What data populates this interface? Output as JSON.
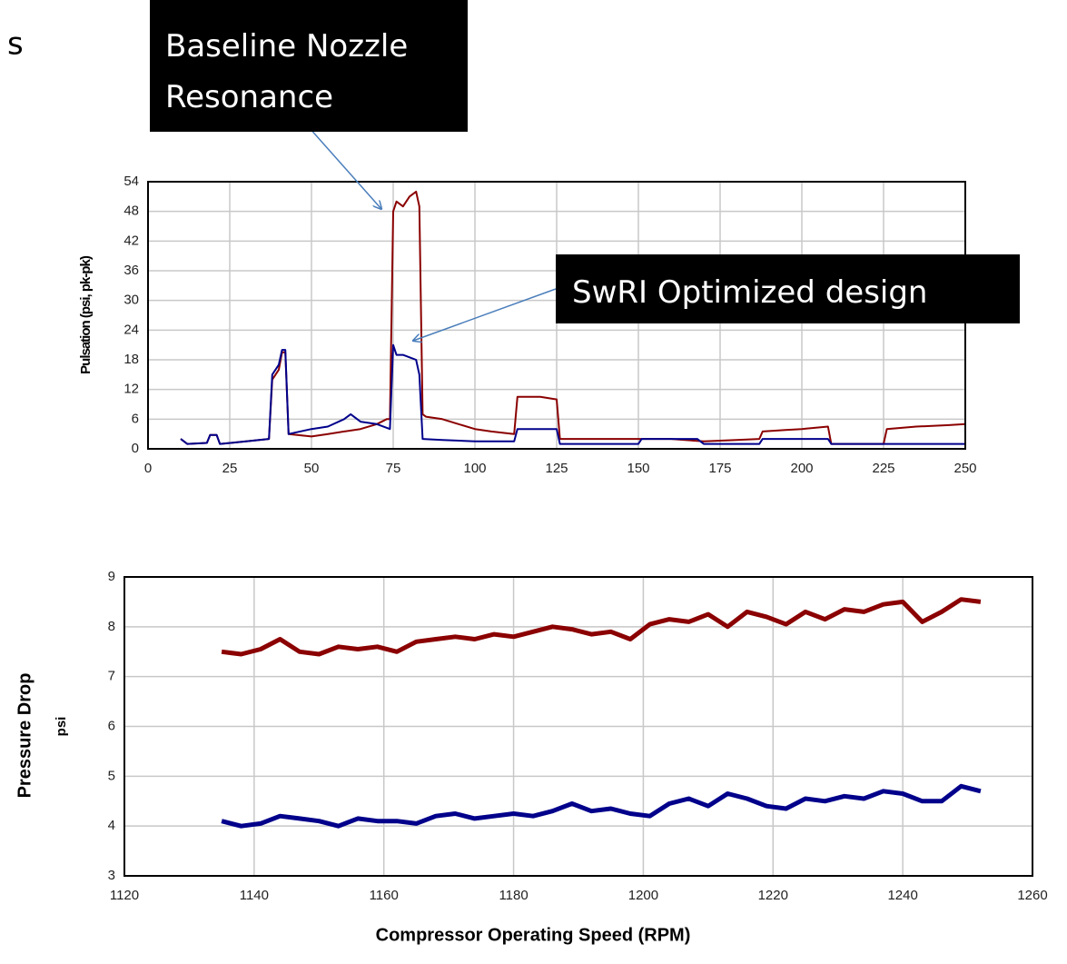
{
  "slide_title_fragment": "s",
  "chart_data": [
    {
      "type": "line",
      "y_label": "Pulsation (psi, pk-pk)",
      "annotations": [
        [
          "Baseline Nozzle",
          "Resonance"
        ],
        [
          "SwRI Optimized design"
        ]
      ],
      "xlim": [
        0,
        250
      ],
      "xticks": [
        0,
        25,
        50,
        75,
        100,
        125,
        150,
        175,
        200,
        225,
        250
      ],
      "ylim": [
        0,
        54
      ],
      "yticks": [
        0,
        6,
        12,
        18,
        24,
        30,
        36,
        42,
        48,
        54
      ],
      "grid": true,
      "line_width": 2,
      "series": [
        {
          "color": "#8b0000",
          "x": [
            10,
            12,
            18,
            19,
            21,
            22,
            30,
            37,
            38,
            40,
            41,
            42,
            43,
            50,
            55,
            60,
            65,
            70,
            73,
            74,
            75,
            76,
            78,
            80,
            82,
            83,
            84,
            85,
            90,
            95,
            100,
            105,
            112,
            113,
            120,
            125,
            126,
            140,
            150,
            160,
            170,
            180,
            187,
            188,
            195,
            200,
            208,
            209,
            215,
            225,
            226,
            235,
            245,
            250
          ],
          "values": [
            2,
            1,
            1.2,
            2.8,
            2.8,
            1,
            1.5,
            2,
            14,
            16,
            19.5,
            19.5,
            3,
            2.5,
            3,
            3.5,
            4,
            5,
            6,
            6,
            48,
            50,
            49,
            51,
            52,
            49,
            7,
            6.5,
            6,
            5,
            4,
            3.5,
            3,
            10.5,
            10.5,
            10,
            2,
            2,
            2,
            2,
            1.5,
            1.8,
            2,
            3.5,
            3.8,
            4,
            4.5,
            1,
            1,
            1,
            4,
            4.5,
            4.8,
            5
          ]
        },
        {
          "color": "#00008b",
          "x": [
            10,
            12,
            18,
            19,
            21,
            22,
            30,
            37,
            38,
            40,
            41,
            42,
            43,
            50,
            55,
            60,
            62,
            65,
            70,
            74,
            75,
            76,
            78,
            80,
            82,
            83,
            84,
            90,
            100,
            112,
            113,
            120,
            125,
            126,
            140,
            150,
            151,
            160,
            168,
            170,
            180,
            187,
            188,
            200,
            208,
            209,
            220,
            230,
            240,
            250
          ],
          "values": [
            2,
            1,
            1.2,
            2.8,
            2.8,
            1,
            1.5,
            2,
            15,
            17,
            20,
            20,
            3,
            4,
            4.5,
            6,
            7,
            5.5,
            5,
            4,
            21,
            19,
            19,
            18.5,
            18,
            15,
            2,
            1.8,
            1.5,
            1.5,
            4,
            4,
            4,
            1,
            1,
            1,
            2,
            2,
            2,
            1,
            1,
            1,
            2,
            2,
            2,
            1,
            1,
            1,
            1,
            1
          ]
        }
      ]
    },
    {
      "type": "line",
      "y_label": [
        "Pressure Drop",
        "psi"
      ],
      "x_label": "Compressor Operating Speed (RPM)",
      "xlim": [
        1120,
        1260
      ],
      "xticks": [
        1120,
        1140,
        1160,
        1180,
        1200,
        1220,
        1240,
        1260
      ],
      "ylim": [
        3,
        9
      ],
      "yticks": [
        3,
        4,
        5,
        6,
        7,
        8,
        9
      ],
      "grid": true,
      "line_width": 5,
      "series": [
        {
          "color": "#8b0000",
          "x": [
            1135,
            1138,
            1141,
            1144,
            1147,
            1150,
            1153,
            1156,
            1159,
            1162,
            1165,
            1168,
            1171,
            1174,
            1177,
            1180,
            1183,
            1186,
            1189,
            1192,
            1195,
            1198,
            1201,
            1204,
            1207,
            1210,
            1213,
            1216,
            1219,
            1222,
            1225,
            1228,
            1231,
            1234,
            1237,
            1240,
            1243,
            1246,
            1249,
            1252
          ],
          "values": [
            7.5,
            7.45,
            7.55,
            7.75,
            7.5,
            7.45,
            7.6,
            7.55,
            7.6,
            7.5,
            7.7,
            7.75,
            7.8,
            7.75,
            7.85,
            7.8,
            7.9,
            8.0,
            7.95,
            7.85,
            7.9,
            7.75,
            8.05,
            8.15,
            8.1,
            8.25,
            8.0,
            8.3,
            8.2,
            8.05,
            8.3,
            8.15,
            8.35,
            8.3,
            8.45,
            8.5,
            8.1,
            8.3,
            8.55,
            8.5
          ]
        },
        {
          "color": "#00008b",
          "x": [
            1135,
            1138,
            1141,
            1144,
            1147,
            1150,
            1153,
            1156,
            1159,
            1162,
            1165,
            1168,
            1171,
            1174,
            1177,
            1180,
            1183,
            1186,
            1189,
            1192,
            1195,
            1198,
            1201,
            1204,
            1207,
            1210,
            1213,
            1216,
            1219,
            1222,
            1225,
            1228,
            1231,
            1234,
            1237,
            1240,
            1243,
            1246,
            1249,
            1252
          ],
          "values": [
            4.1,
            4.0,
            4.05,
            4.2,
            4.15,
            4.1,
            4.0,
            4.15,
            4.1,
            4.1,
            4.05,
            4.2,
            4.25,
            4.15,
            4.2,
            4.25,
            4.2,
            4.3,
            4.45,
            4.3,
            4.35,
            4.25,
            4.2,
            4.45,
            4.55,
            4.4,
            4.65,
            4.55,
            4.4,
            4.35,
            4.55,
            4.5,
            4.6,
            4.55,
            4.7,
            4.65,
            4.5,
            4.5,
            4.8,
            4.7
          ]
        }
      ]
    }
  ]
}
